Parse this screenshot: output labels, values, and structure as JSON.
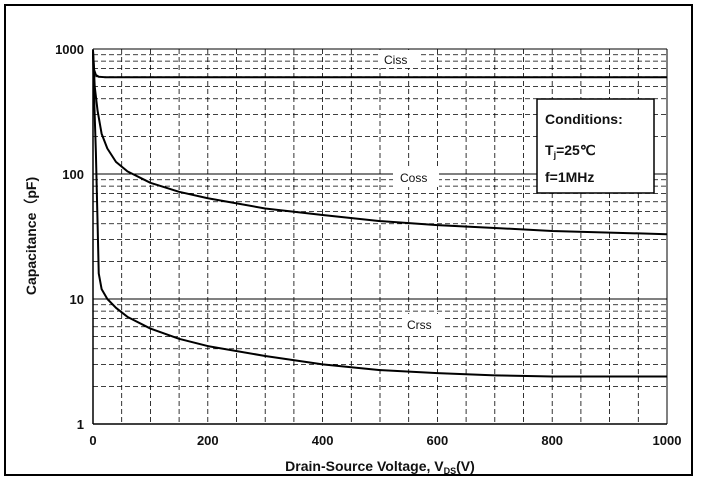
{
  "chart_data": {
    "type": "line",
    "title": "",
    "xlabel": "Drain-Source Voltage, V",
    "xlabel_subscript": "DS",
    "xlabel_unit": "(V)",
    "ylabel": "Capacitance（pF)",
    "xlim": [
      0,
      1000
    ],
    "ylim": [
      1,
      1000
    ],
    "yscale": "log",
    "grid": true,
    "x_ticks": [
      0,
      200,
      400,
      600,
      800,
      1000
    ],
    "x_tick_labels": [
      "0",
      "200",
      "400",
      "600",
      "800",
      "1000"
    ],
    "y_ticks": [
      1,
      10,
      100,
      1000
    ],
    "y_tick_labels": [
      "1",
      "10",
      "100",
      "1000"
    ],
    "series": [
      {
        "name": "Ciss",
        "x": [
          0,
          2,
          5,
          10,
          20,
          50,
          100,
          200,
          400,
          600,
          800,
          1000
        ],
        "y": [
          950,
          680,
          620,
          600,
          595,
          595,
          595,
          595,
          595,
          595,
          595,
          595
        ]
      },
      {
        "name": "Coss",
        "x": [
          0,
          3,
          8,
          15,
          25,
          40,
          60,
          100,
          150,
          200,
          300,
          400,
          500,
          600,
          700,
          800,
          900,
          1000
        ],
        "y": [
          980,
          500,
          320,
          210,
          160,
          125,
          105,
          85,
          72,
          64,
          53,
          47,
          42,
          39,
          37,
          35,
          34,
          33
        ]
      },
      {
        "name": "Crss",
        "x": [
          0,
          2,
          5,
          8,
          10,
          15,
          25,
          40,
          60,
          100,
          150,
          200,
          300,
          400,
          500,
          600,
          700,
          800,
          900,
          1000
        ],
        "y": [
          900,
          400,
          150,
          40,
          16,
          12,
          10,
          8.5,
          7.2,
          5.8,
          4.8,
          4.2,
          3.5,
          3.0,
          2.7,
          2.55,
          2.45,
          2.4,
          2.4,
          2.4
        ]
      }
    ],
    "legend_placement": "inline",
    "annotations": {
      "conditions_title": "Conditions:",
      "tj_prefix": "T",
      "tj_subscript": "j",
      "tj_value": "=25℃",
      "frequency": "f=1MHz"
    }
  }
}
